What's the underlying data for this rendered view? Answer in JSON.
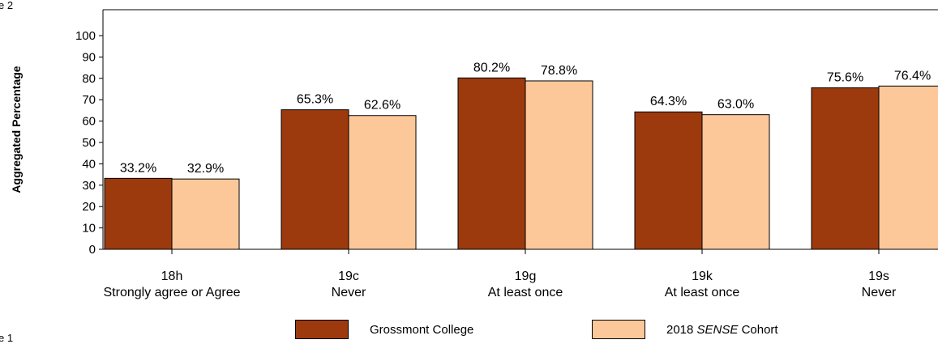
{
  "page_fragments": {
    "top_left": "e 2",
    "bottom_left": "e 1"
  },
  "chart_data": {
    "type": "bar",
    "ylabel": "Aggregated Percentage",
    "ylim": [
      0,
      100
    ],
    "yticks": [
      0,
      10,
      20,
      30,
      40,
      50,
      60,
      70,
      80,
      90,
      100
    ],
    "categories": [
      [
        "18h",
        "Strongly agree or Agree"
      ],
      [
        "19c",
        "Never"
      ],
      [
        "19g",
        "At least once"
      ],
      [
        "19k",
        "At least once"
      ],
      [
        "19s",
        "Never"
      ]
    ],
    "series": [
      {
        "name": "Grossmont College",
        "color": "#9c3a0e",
        "values": [
          33.2,
          65.3,
          80.2,
          64.3,
          75.6
        ],
        "labels": [
          "33.2%",
          "65.3%",
          "80.2%",
          "64.3%",
          "75.6%"
        ]
      },
      {
        "name": "2018 SENSE Cohort",
        "name_prefix": "2018 ",
        "name_italic": "SENSE",
        "name_suffix": " Cohort",
        "color": "#fcc89a",
        "values": [
          32.9,
          62.6,
          78.8,
          63.0,
          76.4
        ],
        "labels": [
          "32.9%",
          "62.6%",
          "78.8%",
          "63.0%",
          "76.4%"
        ]
      }
    ],
    "grid": false,
    "legend": "bottom"
  }
}
